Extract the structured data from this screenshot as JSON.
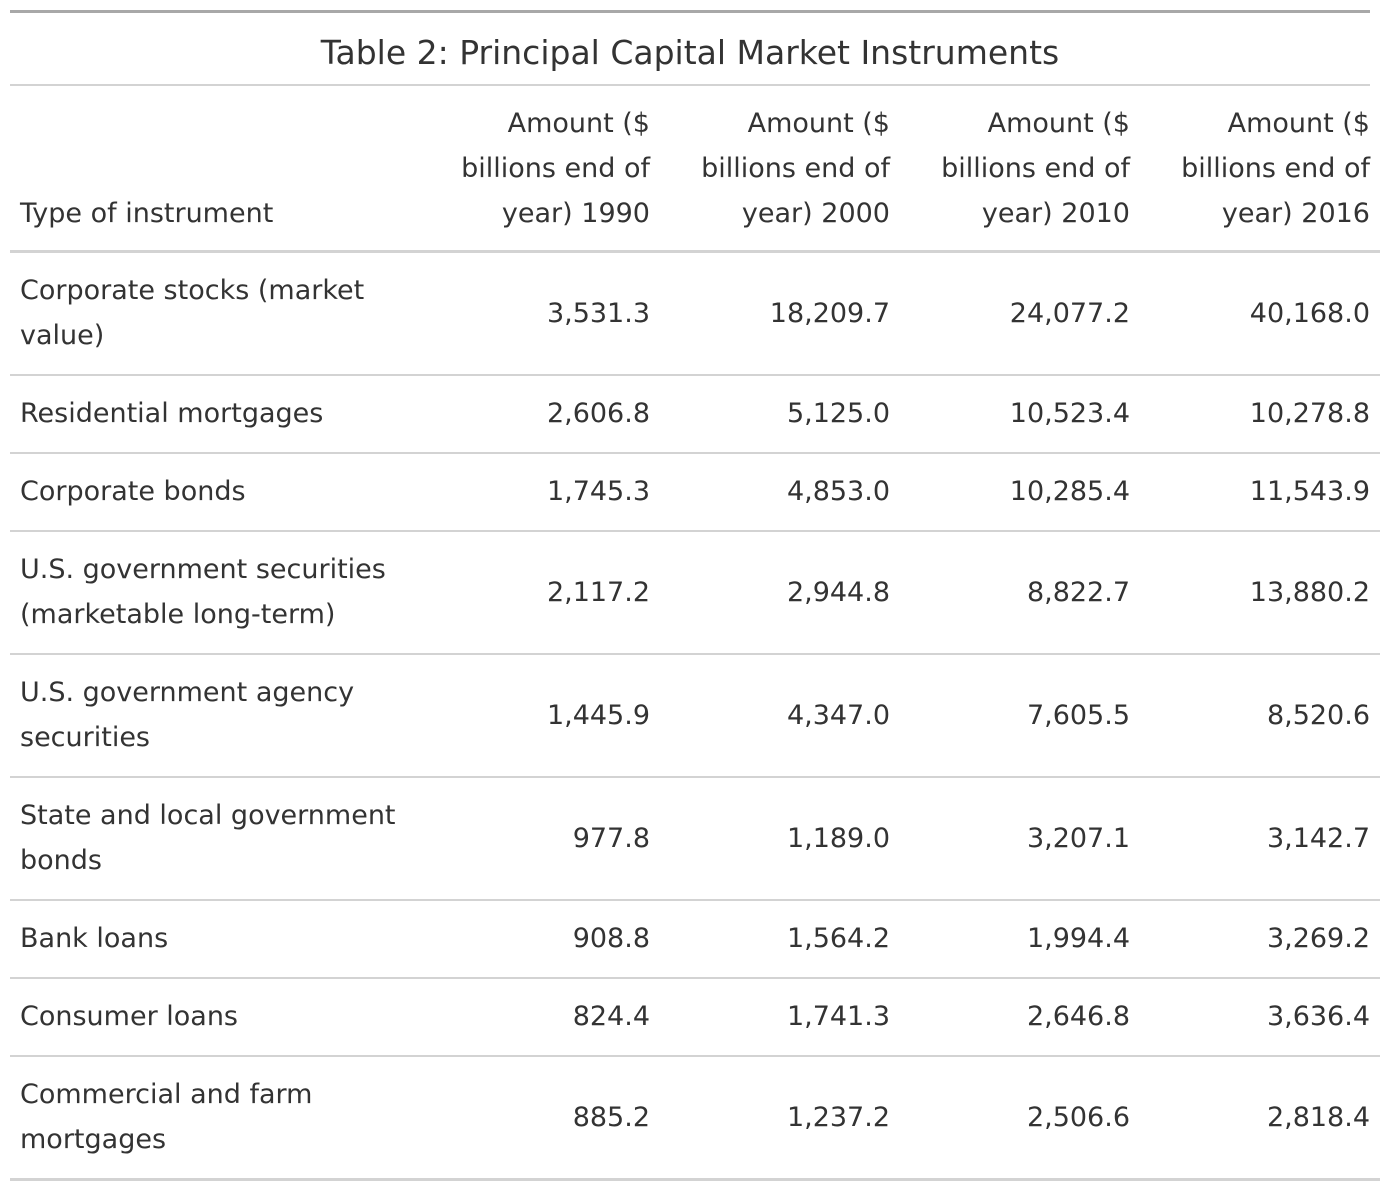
{
  "chart_data": {
    "type": "table",
    "title": "Table 2: Principal Capital Market Instruments",
    "columns": [
      "Type of instrument",
      "Amount ($ billions end of year) 1990",
      "Amount ($ billions end of year) 2000",
      "Amount ($ billions end of year) 2010",
      "Amount ($ billions end of year) 2016"
    ],
    "rows": [
      [
        "Corporate stocks (market value)",
        "3,531.3",
        "18,209.7",
        "24,077.2",
        "40,168.0"
      ],
      [
        "Residential mortgages",
        "2,606.8",
        "5,125.0",
        "10,523.4",
        "10,278.8"
      ],
      [
        "Corporate bonds",
        "1,745.3",
        "4,853.0",
        "10,285.4",
        "11,543.9"
      ],
      [
        "U.S. government securities (marketable long-term)",
        "2,117.2",
        "2,944.8",
        "8,822.7",
        "13,880.2"
      ],
      [
        "U.S. government agency securities",
        "1,445.9",
        "4,347.0",
        "7,605.5",
        "8,520.6"
      ],
      [
        "State and local government bonds",
        "977.8",
        "1,189.0",
        "3,207.1",
        "3,142.7"
      ],
      [
        "Bank loans",
        "908.8",
        "1,564.2",
        "1,994.4",
        "3,269.2"
      ],
      [
        "Consumer loans",
        "824.4",
        "1,741.3",
        "2,646.8",
        "3,636.4"
      ],
      [
        "Commercial and farm mortgages",
        "885.2",
        "1,237.2",
        "2,506.6",
        "2,818.4"
      ]
    ]
  }
}
